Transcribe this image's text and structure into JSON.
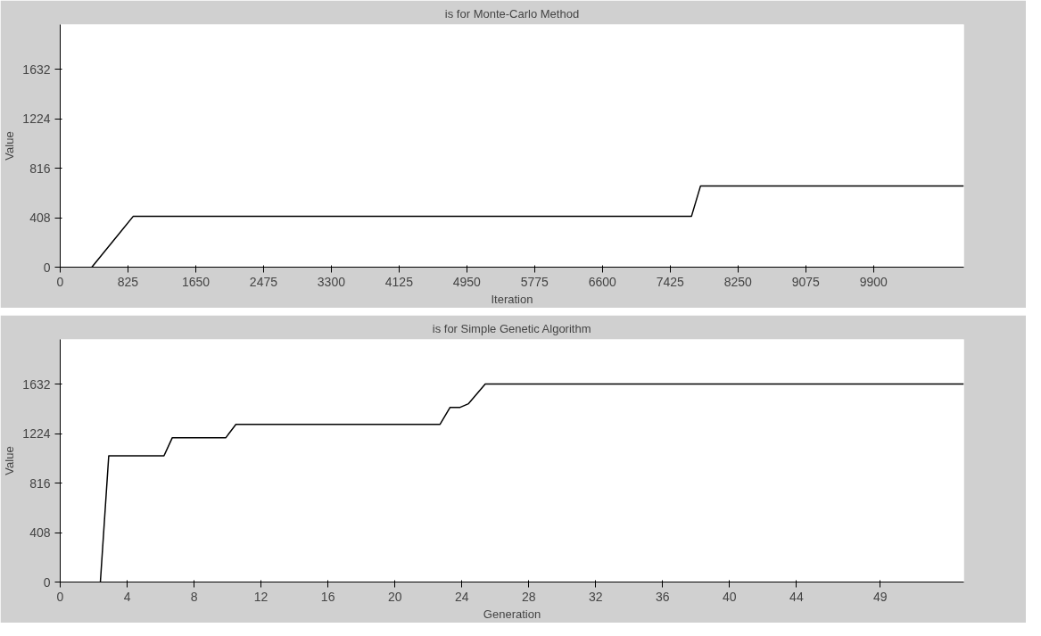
{
  "chart_data": [
    {
      "type": "line",
      "title": "is for Monte-Carlo Method",
      "xlabel": "Iteration",
      "ylabel": "Value",
      "grid": false,
      "marker": "none",
      "line_style": "solid",
      "xlim": [
        0,
        11000
      ],
      "ylim": [
        0,
        2000
      ],
      "xticks": [
        0,
        825,
        1650,
        2475,
        3300,
        4125,
        4950,
        5775,
        6600,
        7425,
        8250,
        9075,
        9900
      ],
      "yticks": [
        0,
        408,
        816,
        1224,
        1632
      ],
      "x": [
        385,
        890,
        7685,
        7795,
        11000
      ],
      "series": [
        {
          "color": "#000000",
          "values": [
            0,
            420,
            420,
            670,
            670
          ]
        }
      ]
    },
    {
      "type": "line",
      "title": "is for Simple Genetic Algorithm",
      "xlabel": "Generation",
      "ylabel": "Value",
      "grid": false,
      "marker": "none",
      "line_style": "solid",
      "xlim": [
        0,
        54
      ],
      "ylim": [
        0,
        2000
      ],
      "xticks": [
        0,
        4,
        8,
        12,
        16,
        20,
        24,
        28,
        32,
        36,
        40,
        44,
        49
      ],
      "yticks": [
        0,
        408,
        816,
        1224,
        1632
      ],
      "x": [
        2.4,
        2.9,
        6.2,
        6.7,
        9.9,
        10.5,
        22.7,
        23.3,
        23.9,
        24.4,
        25.4,
        54
      ],
      "series": [
        {
          "color": "#000000",
          "values": [
            0,
            1040,
            1040,
            1190,
            1190,
            1300,
            1300,
            1440,
            1440,
            1470,
            1632,
            1632
          ]
        }
      ]
    }
  ]
}
